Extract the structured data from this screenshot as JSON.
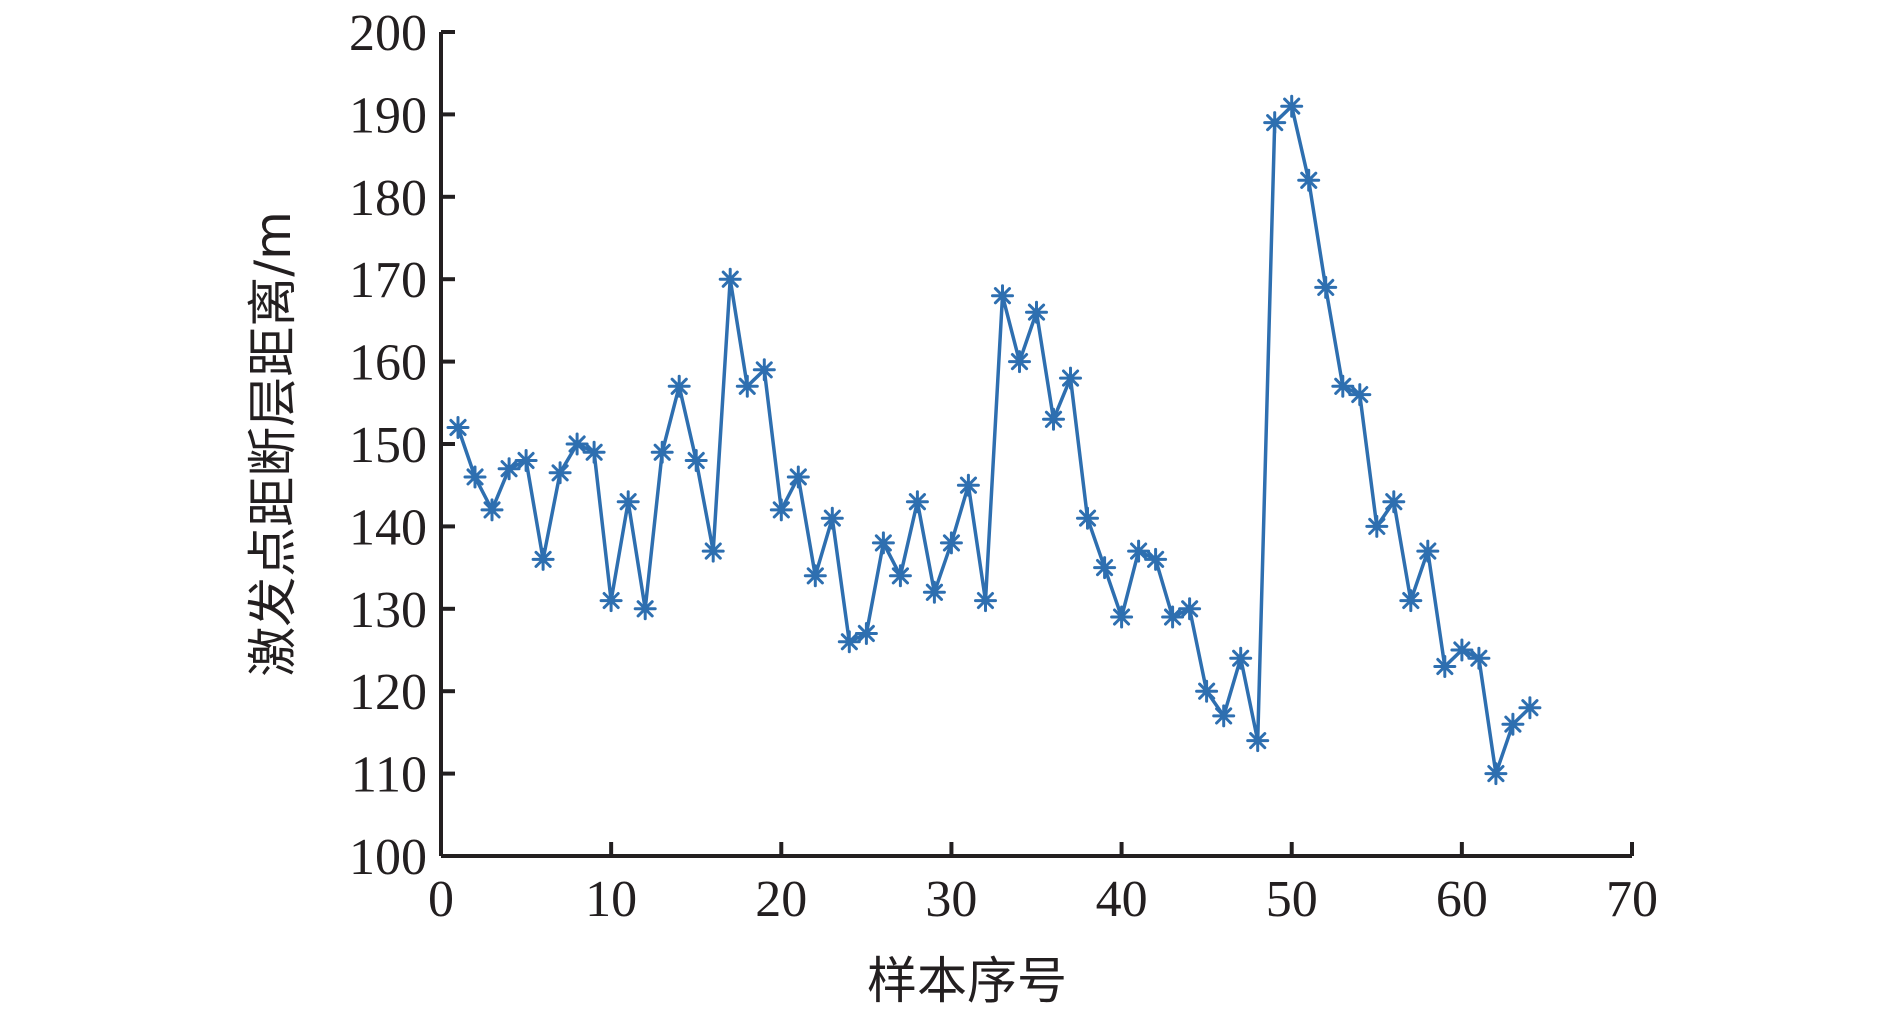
{
  "chart_data": {
    "type": "line",
    "title": "",
    "xlabel": "样本序号",
    "ylabel": "激发点距断层距离/m",
    "xlim": [
      0,
      70
    ],
    "ylim": [
      100,
      200
    ],
    "x_ticks": [
      "0",
      "10",
      "20",
      "30",
      "40",
      "50",
      "60",
      "70"
    ],
    "y_ticks": [
      "100",
      "110",
      "120",
      "130",
      "140",
      "150",
      "160",
      "170",
      "180",
      "190",
      "200"
    ],
    "grid": false,
    "legend": "none",
    "marker": "asterisk",
    "color": "#2e6fb0",
    "x": [
      1,
      2,
      3,
      4,
      5,
      6,
      7,
      8,
      9,
      10,
      11,
      12,
      13,
      14,
      15,
      16,
      17,
      18,
      19,
      20,
      21,
      22,
      23,
      24,
      25,
      26,
      27,
      28,
      29,
      30,
      31,
      32,
      33,
      34,
      35,
      36,
      37,
      38,
      39,
      40,
      41,
      42,
      43,
      44,
      45,
      46,
      47,
      48,
      49,
      50,
      51,
      52,
      53,
      54,
      55,
      56,
      57,
      58,
      59,
      60,
      61,
      62,
      63,
      64
    ],
    "y": [
      152,
      146,
      142,
      147,
      148,
      136,
      146.5,
      150,
      149,
      131,
      143,
      130,
      149,
      157,
      148,
      137,
      170,
      157,
      159,
      142,
      146,
      134,
      141,
      126,
      127,
      138,
      134,
      143,
      132,
      138,
      145,
      131,
      168,
      160,
      166,
      153,
      158,
      141,
      135,
      129,
      137,
      136,
      129,
      130,
      120,
      117,
      124,
      114,
      189,
      191,
      182,
      169,
      157,
      156,
      140,
      143,
      131,
      137,
      123,
      125,
      124,
      110,
      116,
      118
    ]
  }
}
